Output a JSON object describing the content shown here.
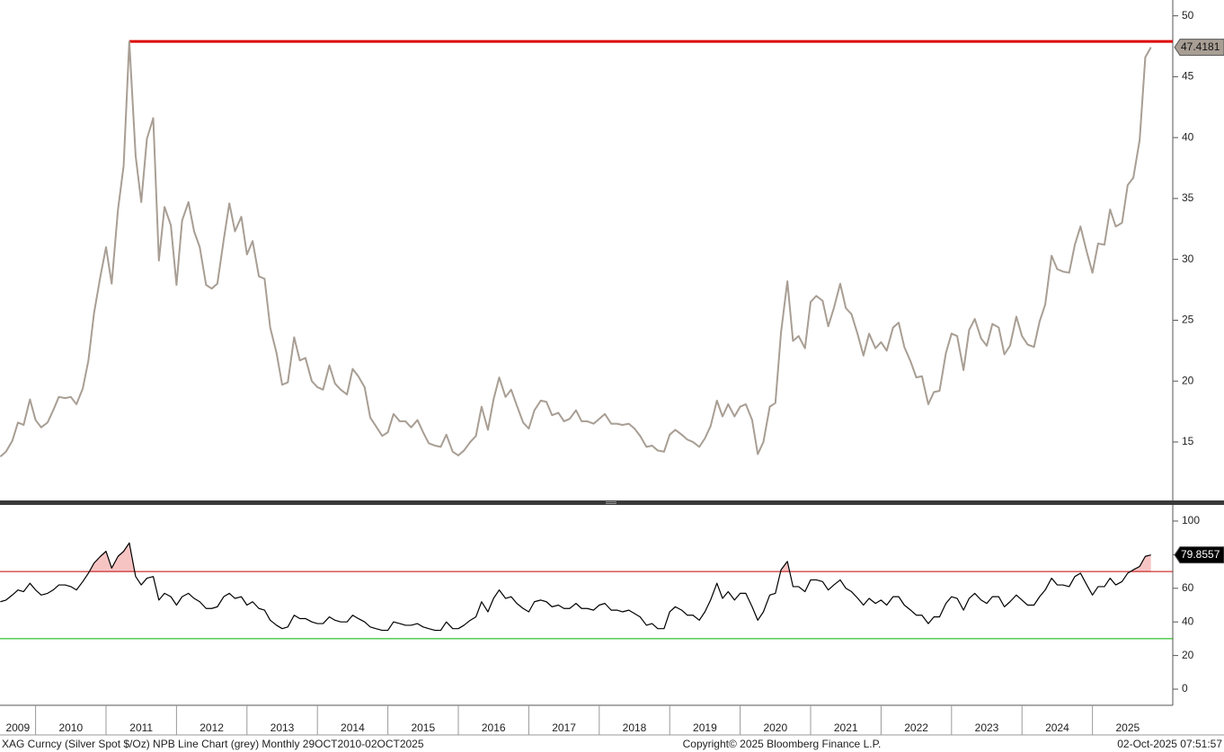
{
  "chart_data": [
    {
      "type": "line",
      "x": [
        2009.5,
        2009.58,
        2009.67,
        2009.75,
        2009.83,
        2009.92,
        2010,
        2010.08,
        2010.17,
        2010.25,
        2010.33,
        2010.42,
        2010.5,
        2010.58,
        2010.67,
        2010.75,
        2010.83,
        2010.92,
        2011,
        2011.08,
        2011.17,
        2011.25,
        2011.33,
        2011.42,
        2011.5,
        2011.58,
        2011.67,
        2011.75,
        2011.83,
        2011.92,
        2012,
        2012.08,
        2012.17,
        2012.25,
        2012.33,
        2012.42,
        2012.5,
        2012.58,
        2012.67,
        2012.75,
        2012.83,
        2012.92,
        2013,
        2013.08,
        2013.17,
        2013.25,
        2013.33,
        2013.42,
        2013.5,
        2013.58,
        2013.67,
        2013.75,
        2013.83,
        2013.92,
        2014,
        2014.08,
        2014.17,
        2014.25,
        2014.33,
        2014.42,
        2014.5,
        2014.58,
        2014.67,
        2014.75,
        2014.83,
        2014.92,
        2015,
        2015.08,
        2015.17,
        2015.25,
        2015.33,
        2015.42,
        2015.5,
        2015.58,
        2015.67,
        2015.75,
        2015.83,
        2015.92,
        2016,
        2016.08,
        2016.17,
        2016.25,
        2016.33,
        2016.42,
        2016.5,
        2016.58,
        2016.67,
        2016.75,
        2016.83,
        2016.92,
        2017,
        2017.08,
        2017.17,
        2017.25,
        2017.33,
        2017.42,
        2017.5,
        2017.58,
        2017.67,
        2017.75,
        2017.83,
        2017.92,
        2018,
        2018.08,
        2018.17,
        2018.25,
        2018.33,
        2018.42,
        2018.5,
        2018.58,
        2018.67,
        2018.75,
        2018.83,
        2018.92,
        2019,
        2019.08,
        2019.17,
        2019.25,
        2019.33,
        2019.42,
        2019.5,
        2019.58,
        2019.67,
        2019.75,
        2019.83,
        2019.92,
        2020,
        2020.08,
        2020.17,
        2020.25,
        2020.33,
        2020.42,
        2020.5,
        2020.58,
        2020.67,
        2020.75,
        2020.83,
        2020.92,
        2021,
        2021.08,
        2021.17,
        2021.25,
        2021.33,
        2021.42,
        2021.5,
        2021.58,
        2021.67,
        2021.75,
        2021.83,
        2021.92,
        2022,
        2022.08,
        2022.17,
        2022.25,
        2022.33,
        2022.42,
        2022.5,
        2022.58,
        2022.67,
        2022.75,
        2022.83,
        2022.92,
        2023,
        2023.08,
        2023.17,
        2023.25,
        2023.33,
        2023.42,
        2023.5,
        2023.58,
        2023.67,
        2023.75,
        2023.83,
        2023.92,
        2024,
        2024.08,
        2024.17,
        2024.25,
        2024.33,
        2024.42,
        2024.5,
        2024.58,
        2024.67,
        2024.75,
        2024.83,
        2024.92,
        2025,
        2025.08,
        2025.17,
        2025.25,
        2025.33,
        2025.42,
        2025.5,
        2025.58,
        2025.67,
        2025.75,
        2025.83
      ],
      "series": [
        {
          "color": "#a89e94",
          "values": [
            13.8,
            14.2,
            15.1,
            16.6,
            16.4,
            18.5,
            16.8,
            16.2,
            16.6,
            17.6,
            18.7,
            18.6,
            18.7,
            18.1,
            19.4,
            21.7,
            25.6,
            28.6,
            31.0,
            28.0,
            34.1,
            37.7,
            47.9,
            38.5,
            34.7,
            39.9,
            41.6,
            29.9,
            34.3,
            32.8,
            27.9,
            33.2,
            34.7,
            32.3,
            31.0,
            27.9,
            27.6,
            28.0,
            31.6,
            34.6,
            32.3,
            33.5,
            30.4,
            31.5,
            28.6,
            28.4,
            24.4,
            22.3,
            19.7,
            19.9,
            23.6,
            21.7,
            21.9,
            20.0,
            19.5,
            19.3,
            21.3,
            19.8,
            19.3,
            18.9,
            21.0,
            20.4,
            19.5,
            17.0,
            16.3,
            15.5,
            15.8,
            17.3,
            16.7,
            16.7,
            16.2,
            16.8,
            15.8,
            14.9,
            14.7,
            14.6,
            15.6,
            14.2,
            13.9,
            14.3,
            15.0,
            15.5,
            17.9,
            16.0,
            18.5,
            20.3,
            18.7,
            19.3,
            18.0,
            16.6,
            16.1,
            17.6,
            18.4,
            18.3,
            17.2,
            17.4,
            16.7,
            16.9,
            17.6,
            16.7,
            16.7,
            16.5,
            16.9,
            17.3,
            16.5,
            16.5,
            16.4,
            16.5,
            16.1,
            15.5,
            14.6,
            14.7,
            14.3,
            14.2,
            15.6,
            16.0,
            15.6,
            15.2,
            15.0,
            14.6,
            15.3,
            16.3,
            18.4,
            17.1,
            18.1,
            17.1,
            17.9,
            18.1,
            16.8,
            14.0,
            15.0,
            17.9,
            18.2,
            24.0,
            28.2,
            23.3,
            23.7,
            22.7,
            26.5,
            27.0,
            26.6,
            24.5,
            26.0,
            28.0,
            26.0,
            25.5,
            23.8,
            22.1,
            23.9,
            22.7,
            23.2,
            22.5,
            24.4,
            24.8,
            22.8,
            21.6,
            20.3,
            20.4,
            18.1,
            19.1,
            19.2,
            22.3,
            23.9,
            23.7,
            20.9,
            24.2,
            25.1,
            23.5,
            22.9,
            24.7,
            24.4,
            22.2,
            22.9,
            25.3,
            23.7,
            23.0,
            22.8,
            24.9,
            26.3,
            30.3,
            29.2,
            29.0,
            28.9,
            31.2,
            32.7,
            30.6,
            28.9,
            31.3,
            31.2,
            34.1,
            32.7,
            33.0,
            36.1,
            36.7,
            39.8,
            46.6,
            47.4181
          ]
        }
      ],
      "xlim": [
        2009.495,
        2026.14
      ],
      "ylim": [
        10.2,
        51.3
      ],
      "yticks": [
        15,
        20,
        25,
        30,
        35,
        40,
        45,
        50
      ],
      "hlines": [
        {
          "value": 47.9,
          "from": 2011.33,
          "color": "#dd0000"
        }
      ]
    },
    {
      "type": "line",
      "x": [
        2009.5,
        2009.58,
        2009.67,
        2009.75,
        2009.83,
        2009.92,
        2010,
        2010.08,
        2010.17,
        2010.25,
        2010.33,
        2010.42,
        2010.5,
        2010.58,
        2010.67,
        2010.75,
        2010.83,
        2010.92,
        2011,
        2011.08,
        2011.17,
        2011.25,
        2011.33,
        2011.42,
        2011.5,
        2011.58,
        2011.67,
        2011.75,
        2011.83,
        2011.92,
        2012,
        2012.08,
        2012.17,
        2012.25,
        2012.33,
        2012.42,
        2012.5,
        2012.58,
        2012.67,
        2012.75,
        2012.83,
        2012.92,
        2013,
        2013.08,
        2013.17,
        2013.25,
        2013.33,
        2013.42,
        2013.5,
        2013.58,
        2013.67,
        2013.75,
        2013.83,
        2013.92,
        2014,
        2014.08,
        2014.17,
        2014.25,
        2014.33,
        2014.42,
        2014.5,
        2014.58,
        2014.67,
        2014.75,
        2014.83,
        2014.92,
        2015,
        2015.08,
        2015.17,
        2015.25,
        2015.33,
        2015.42,
        2015.5,
        2015.58,
        2015.67,
        2015.75,
        2015.83,
        2015.92,
        2016,
        2016.08,
        2016.17,
        2016.25,
        2016.33,
        2016.42,
        2016.5,
        2016.58,
        2016.67,
        2016.75,
        2016.83,
        2016.92,
        2017,
        2017.08,
        2017.17,
        2017.25,
        2017.33,
        2017.42,
        2017.5,
        2017.58,
        2017.67,
        2017.75,
        2017.83,
        2017.92,
        2018,
        2018.08,
        2018.17,
        2018.25,
        2018.33,
        2018.42,
        2018.5,
        2018.58,
        2018.67,
        2018.75,
        2018.83,
        2018.92,
        2019,
        2019.08,
        2019.17,
        2019.25,
        2019.33,
        2019.42,
        2019.5,
        2019.58,
        2019.67,
        2019.75,
        2019.83,
        2019.92,
        2020,
        2020.08,
        2020.17,
        2020.25,
        2020.33,
        2020.42,
        2020.5,
        2020.58,
        2020.67,
        2020.75,
        2020.83,
        2020.92,
        2021,
        2021.08,
        2021.17,
        2021.25,
        2021.33,
        2021.42,
        2021.5,
        2021.58,
        2021.67,
        2021.75,
        2021.83,
        2021.92,
        2022,
        2022.08,
        2022.17,
        2022.25,
        2022.33,
        2022.42,
        2022.5,
        2022.58,
        2022.67,
        2022.75,
        2022.83,
        2022.92,
        2023,
        2023.08,
        2023.17,
        2023.25,
        2023.33,
        2023.42,
        2023.5,
        2023.58,
        2023.67,
        2023.75,
        2023.83,
        2023.92,
        2024,
        2024.08,
        2024.17,
        2024.25,
        2024.33,
        2024.42,
        2024.5,
        2024.58,
        2024.67,
        2024.75,
        2024.83,
        2024.92,
        2025,
        2025.08,
        2025.17,
        2025.25,
        2025.33,
        2025.42,
        2025.5,
        2025.58,
        2025.67,
        2025.75,
        2025.83
      ],
      "series": [
        {
          "color": "#000000",
          "values": [
            52,
            53,
            56,
            59,
            58,
            63,
            59,
            56,
            57,
            59,
            62,
            62,
            61,
            59,
            64,
            69,
            75,
            79,
            82,
            72,
            79,
            82,
            87,
            67,
            62,
            66,
            67,
            53,
            57,
            55,
            50,
            55,
            57,
            54,
            52,
            48,
            48,
            49,
            55,
            57,
            54,
            55,
            50,
            52,
            48,
            47,
            41,
            38,
            36,
            37,
            44,
            42,
            42,
            40,
            39,
            39,
            43,
            41,
            40,
            40,
            44,
            42,
            40,
            37,
            36,
            35,
            35,
            40,
            39,
            38,
            38,
            39,
            37,
            36,
            35,
            35,
            40,
            36,
            36,
            38,
            41,
            43,
            52,
            46,
            54,
            59,
            54,
            55,
            51,
            48,
            46,
            52,
            53,
            52,
            49,
            50,
            48,
            48,
            51,
            48,
            48,
            47,
            50,
            51,
            47,
            47,
            46,
            47,
            45,
            43,
            38,
            39,
            36,
            36,
            46,
            49,
            47,
            44,
            44,
            41,
            46,
            53,
            63,
            54,
            58,
            53,
            57,
            57,
            49,
            41,
            46,
            56,
            57,
            71,
            76,
            61,
            61,
            58,
            65,
            65,
            64,
            59,
            62,
            65,
            60,
            58,
            54,
            50,
            54,
            51,
            53,
            50,
            55,
            55,
            50,
            47,
            44,
            44,
            39,
            43,
            43,
            51,
            55,
            54,
            47,
            54,
            57,
            53,
            51,
            55,
            55,
            49,
            52,
            56,
            53,
            50,
            50,
            55,
            59,
            66,
            62,
            62,
            61,
            67,
            69,
            62,
            56,
            61,
            61,
            66,
            62,
            64,
            69,
            71,
            73,
            79,
            79.8557
          ]
        }
      ],
      "xlim": [
        2009.495,
        2026.14
      ],
      "ylim": [
        -9.6,
        109.6
      ],
      "yticks": [
        0,
        20,
        40,
        60,
        80,
        100
      ],
      "hlines": [
        {
          "value": 70,
          "color": "#c00000"
        },
        {
          "value": 30,
          "color": "#00b000"
        }
      ],
      "fill_color": "#f7c4c4",
      "xticks": [
        2009,
        2010,
        2011,
        2012,
        2013,
        2014,
        2015,
        2016,
        2017,
        2018,
        2019,
        2020,
        2021,
        2022,
        2023,
        2024,
        2025
      ]
    }
  ],
  "footer": {
    "left": "XAG Curncy (Silver Spot  $/Oz) NPB Line Chart (grey) Monthly 29OCT2010-02OCT2025",
    "center": "Copyright© 2025 Bloomberg Finance L.P.",
    "right": "02-Oct-2025 07:51:57"
  }
}
